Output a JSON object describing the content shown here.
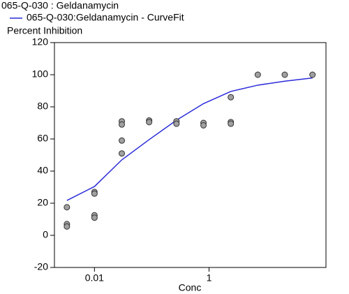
{
  "chart_data": {
    "type": "scatter",
    "title": "065-Q-030  : Geldanamycin",
    "ylabel": "Percent Inhibition",
    "xlabel": "Conc",
    "xscale": "log",
    "xlim": [
      0.002,
      110
    ],
    "ylim": [
      -20,
      120
    ],
    "xticks": [
      0.01,
      1
    ],
    "yticks": [
      -20,
      0,
      20,
      40,
      60,
      80,
      100,
      120
    ],
    "points": {
      "color": "#a0a0a0",
      "x": [
        0.0033,
        0.0033,
        0.0033,
        0.01,
        0.01,
        0.01,
        0.01,
        0.03,
        0.03,
        0.03,
        0.03,
        0.09,
        0.09,
        0.27,
        0.27,
        0.8,
        0.8,
        2.4,
        2.4,
        2.4,
        7.1,
        21,
        64
      ],
      "y": [
        17.5,
        7,
        5.5,
        27,
        26,
        12.5,
        11,
        71,
        69,
        59,
        51,
        71.5,
        70.5,
        71,
        69.5,
        70,
        68.5,
        86,
        70.5,
        69.5,
        100,
        100,
        100
      ]
    },
    "series": [
      {
        "name": "065-Q-030:Geldanamycin - CurveFit",
        "color": "#2b2bd9",
        "x": [
          0.0033,
          0.01,
          0.03,
          0.09,
          0.27,
          0.8,
          2.4,
          7.1,
          21,
          64
        ],
        "values": [
          21.7,
          30.4,
          47,
          59.6,
          71.7,
          82,
          89.6,
          93.5,
          96,
          98
        ]
      }
    ]
  }
}
